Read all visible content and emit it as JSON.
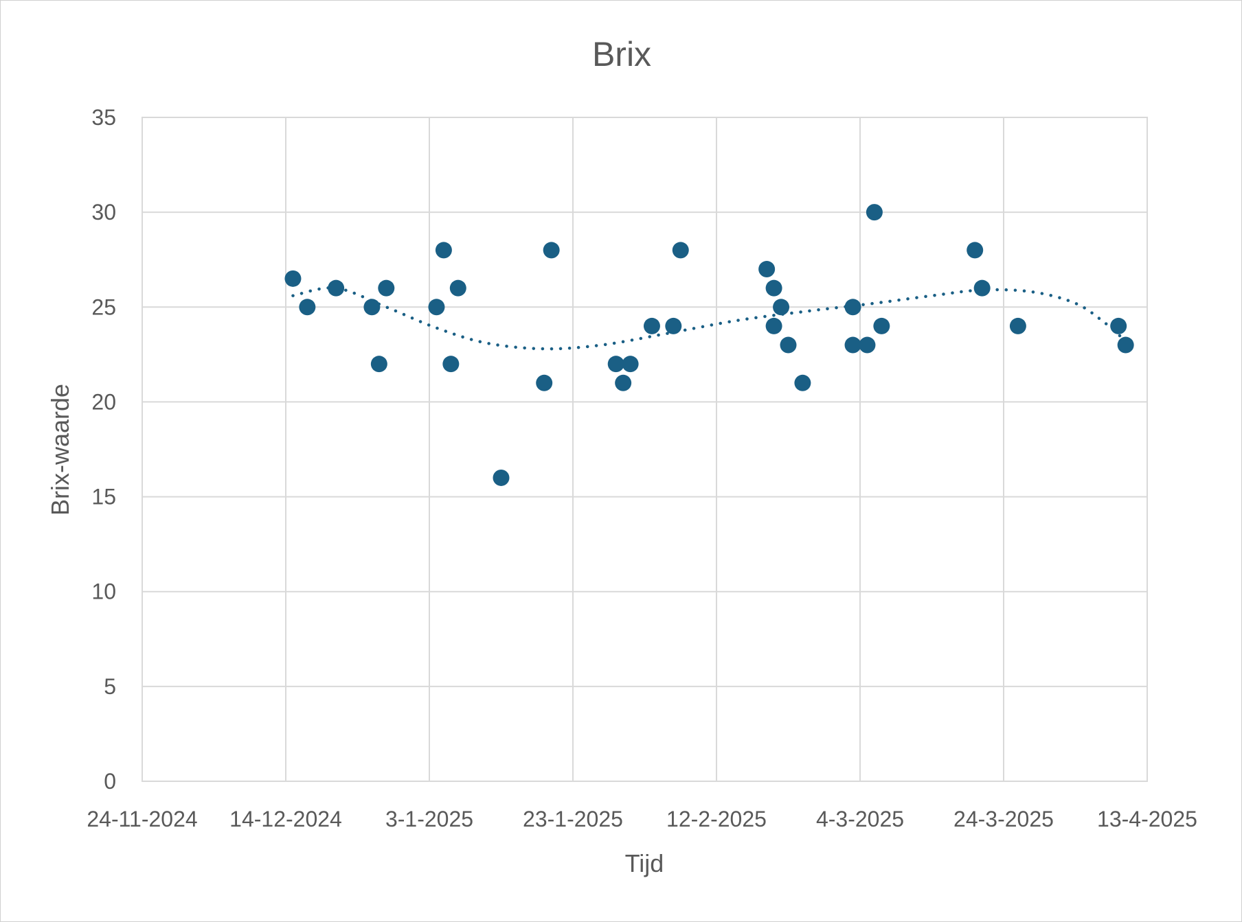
{
  "chart_data": {
    "type": "scatter",
    "title": "Brix",
    "xlabel": "Tijd",
    "ylabel": "Brix-waarde",
    "x_axis_type": "date",
    "xlim": [
      "2024-11-24",
      "2025-04-13"
    ],
    "ylim": [
      0,
      35
    ],
    "x_ticks": [
      "24-11-2024",
      "14-12-2024",
      "3-1-2025",
      "23-1-2025",
      "12-2-2025",
      "4-3-2025",
      "24-3-2025",
      "13-4-2025"
    ],
    "y_ticks": [
      "0",
      "5",
      "10",
      "15",
      "20",
      "25",
      "30",
      "35"
    ],
    "grid": true,
    "legend": "none",
    "marker_color": "#1a5f85",
    "trendline": {
      "type": "polynomial",
      "style": "dotted",
      "color": "#1a5f85"
    },
    "points": [
      {
        "x": "2024-12-15",
        "y": 26.5
      },
      {
        "x": "2024-12-17",
        "y": 25
      },
      {
        "x": "2024-12-21",
        "y": 26
      },
      {
        "x": "2024-12-26",
        "y": 25
      },
      {
        "x": "2024-12-27",
        "y": 22
      },
      {
        "x": "2024-12-28",
        "y": 26
      },
      {
        "x": "2025-01-04",
        "y": 25
      },
      {
        "x": "2025-01-05",
        "y": 28
      },
      {
        "x": "2025-01-06",
        "y": 22
      },
      {
        "x": "2025-01-07",
        "y": 26
      },
      {
        "x": "2025-01-13",
        "y": 16
      },
      {
        "x": "2025-01-19",
        "y": 21
      },
      {
        "x": "2025-01-20",
        "y": 28
      },
      {
        "x": "2025-01-29",
        "y": 22
      },
      {
        "x": "2025-01-30",
        "y": 21
      },
      {
        "x": "2025-01-31",
        "y": 22
      },
      {
        "x": "2025-02-03",
        "y": 24
      },
      {
        "x": "2025-02-06",
        "y": 24
      },
      {
        "x": "2025-02-07",
        "y": 28
      },
      {
        "x": "2025-02-19",
        "y": 27
      },
      {
        "x": "2025-02-20",
        "y": 26
      },
      {
        "x": "2025-02-20",
        "y": 24
      },
      {
        "x": "2025-02-21",
        "y": 25
      },
      {
        "x": "2025-02-22",
        "y": 23
      },
      {
        "x": "2025-02-24",
        "y": 21
      },
      {
        "x": "2025-03-03",
        "y": 25
      },
      {
        "x": "2025-03-03",
        "y": 23
      },
      {
        "x": "2025-03-05",
        "y": 23
      },
      {
        "x": "2025-03-06",
        "y": 30
      },
      {
        "x": "2025-03-07",
        "y": 24
      },
      {
        "x": "2025-03-20",
        "y": 28
      },
      {
        "x": "2025-03-21",
        "y": 26
      },
      {
        "x": "2025-03-26",
        "y": 24
      },
      {
        "x": "2025-04-09",
        "y": 24
      },
      {
        "x": "2025-04-10",
        "y": 23
      }
    ],
    "trend_points": [
      {
        "x": "2024-12-15",
        "y": 25.6
      },
      {
        "x": "2024-12-21",
        "y": 26.0
      },
      {
        "x": "2024-12-28",
        "y": 25.0
      },
      {
        "x": "2025-01-04",
        "y": 23.9
      },
      {
        "x": "2025-01-11",
        "y": 23.1
      },
      {
        "x": "2025-01-19",
        "y": 22.8
      },
      {
        "x": "2025-01-27",
        "y": 23.0
      },
      {
        "x": "2025-02-05",
        "y": 23.6
      },
      {
        "x": "2025-02-15",
        "y": 24.3
      },
      {
        "x": "2025-02-25",
        "y": 24.8
      },
      {
        "x": "2025-03-06",
        "y": 25.2
      },
      {
        "x": "2025-03-14",
        "y": 25.6
      },
      {
        "x": "2025-03-21",
        "y": 25.9
      },
      {
        "x": "2025-03-28",
        "y": 25.8
      },
      {
        "x": "2025-04-03",
        "y": 25.2
      },
      {
        "x": "2025-04-07",
        "y": 24.2
      },
      {
        "x": "2025-04-10",
        "y": 23.2
      }
    ]
  }
}
